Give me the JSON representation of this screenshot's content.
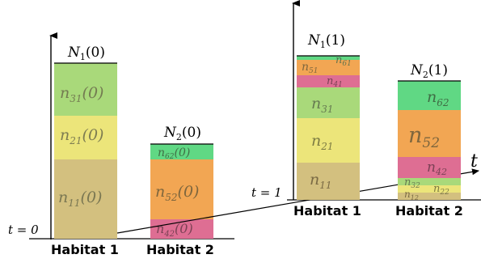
{
  "colors": {
    "n11": "#d3c07f",
    "n21": "#ece57a",
    "n31": "#a9d97a",
    "n41": "#de6e93",
    "n42": "#de6e93",
    "n51": "#f2a653",
    "n52": "#f2a653",
    "n61": "#60d884",
    "n62": "#60d884",
    "n12": "#d3c07f",
    "n22": "#ece57a",
    "n32": "#a9d97a",
    "label_fill": "#6a6a4a"
  },
  "time_labels": {
    "t0": "t = 0",
    "t1": "t = 1",
    "axis": "t"
  },
  "t0": {
    "habitat1": {
      "title_main": "N",
      "title_sub": "1",
      "title_arg": "(0)",
      "label": "Habitat 1",
      "segments": [
        {
          "key": "n11",
          "main": "n",
          "sub": "11",
          "arg": "(0)"
        },
        {
          "key": "n21",
          "main": "n",
          "sub": "21",
          "arg": "(0)"
        },
        {
          "key": "n31",
          "main": "n",
          "sub": "31",
          "arg": "(0)"
        }
      ]
    },
    "habitat2": {
      "title_main": "N",
      "title_sub": "2",
      "title_arg": "(0)",
      "label": "Habitat 2",
      "segments": [
        {
          "key": "n42",
          "main": "n",
          "sub": "42",
          "arg": "(0)"
        },
        {
          "key": "n52",
          "main": "n",
          "sub": "52",
          "arg": "(0)"
        },
        {
          "key": "n62",
          "main": "n",
          "sub": "62",
          "arg": "(0)"
        }
      ]
    }
  },
  "t1": {
    "habitat1": {
      "title_main": "N",
      "title_sub": "1",
      "title_arg": "(1)",
      "label": "Habitat 1",
      "segments": [
        {
          "key": "n11",
          "main": "n",
          "sub": "11",
          "arg": ""
        },
        {
          "key": "n21",
          "main": "n",
          "sub": "21",
          "arg": ""
        },
        {
          "key": "n31",
          "main": "n",
          "sub": "31",
          "arg": ""
        },
        {
          "key": "n41",
          "main": "n",
          "sub": "41",
          "arg": ""
        },
        {
          "key": "n51",
          "main": "n",
          "sub": "51",
          "arg": ""
        },
        {
          "key": "n61",
          "main": "n",
          "sub": "61",
          "arg": ""
        }
      ]
    },
    "habitat2": {
      "title_main": "N",
      "title_sub": "2",
      "title_arg": "(1)",
      "label": "Habitat 2",
      "segments": [
        {
          "key": "n12",
          "main": "n",
          "sub": "12",
          "arg": ""
        },
        {
          "key": "n22",
          "main": "n",
          "sub": "22",
          "arg": ""
        },
        {
          "key": "n32",
          "main": "n",
          "sub": "32",
          "arg": ""
        },
        {
          "key": "n42",
          "main": "n",
          "sub": "42",
          "arg": ""
        },
        {
          "key": "n52",
          "main": "n",
          "sub": "52",
          "arg": ""
        },
        {
          "key": "n62",
          "main": "n",
          "sub": "62",
          "arg": ""
        }
      ]
    }
  }
}
